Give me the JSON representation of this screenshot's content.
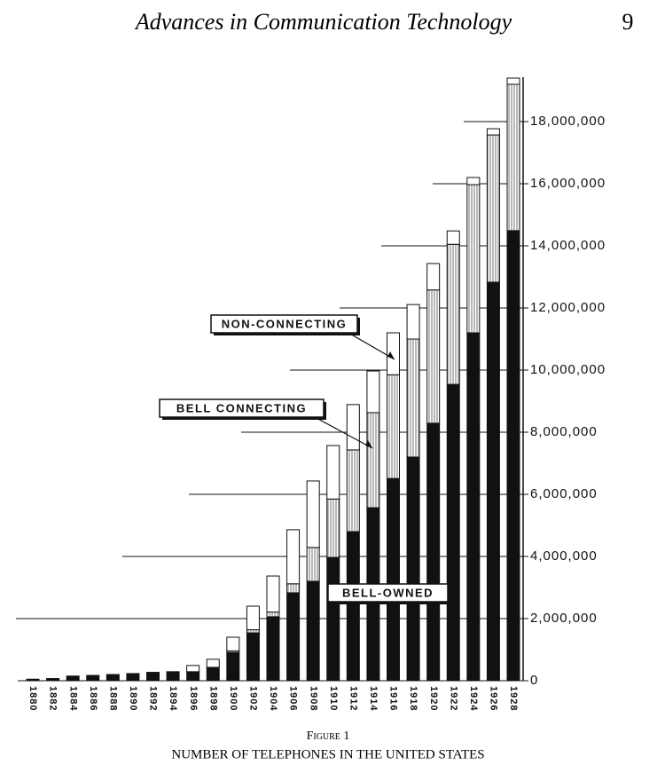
{
  "header": {
    "title": "Advances in Communication Technology",
    "page_number": "9"
  },
  "chart_data": {
    "type": "stacked-bar",
    "figure_label": "Figure 1",
    "title": "NUMBER OF TELEPHONES IN THE UNITED STATES",
    "categories": [
      "1880",
      "1882",
      "1884",
      "1886",
      "1888",
      "1890",
      "1892",
      "1894",
      "1896",
      "1898",
      "1900",
      "1902",
      "1904",
      "1906",
      "1908",
      "1910",
      "1912",
      "1914",
      "1916",
      "1918",
      "1920",
      "1922",
      "1924",
      "1926",
      "1928"
    ],
    "series": [
      {
        "name": "BELL-OWNED",
        "color": "#111111",
        "values": [
          50000,
          70000,
          150000,
          170000,
          200000,
          230000,
          270000,
          290000,
          290000,
          430000,
          910000,
          1540000,
          2060000,
          2830000,
          3200000,
          3970000,
          4800000,
          5570000,
          6510000,
          7200000,
          8290000,
          9540000,
          11200000,
          12830000,
          14490000
        ]
      },
      {
        "name": "BELL CONNECTING",
        "color": "#8a8a8a",
        "values": [
          0,
          0,
          0,
          0,
          0,
          0,
          0,
          0,
          0,
          0,
          50000,
          100000,
          150000,
          290000,
          1090000,
          1880000,
          2630000,
          3060000,
          3340000,
          3800000,
          4290000,
          4510000,
          4770000,
          4740000,
          4710000
        ]
      },
      {
        "name": "NON-CONNECTING",
        "color": "#ffffff",
        "values": [
          0,
          0,
          0,
          0,
          0,
          0,
          0,
          0,
          200000,
          260000,
          440000,
          760000,
          1160000,
          1740000,
          2140000,
          1720000,
          1460000,
          1340000,
          1350000,
          1110000,
          850000,
          430000,
          230000,
          200000,
          200000
        ]
      }
    ],
    "ylim": [
      0,
      20000000
    ],
    "yticks": [
      0,
      {
        "value": 2000000,
        "label": "2,000,000"
      },
      {
        "value": 4000000,
        "label": "4,000,000"
      },
      {
        "value": 6000000,
        "label": "6,000,000"
      },
      {
        "value": 8000000,
        "label": "8,000,000"
      },
      {
        "value": 10000000,
        "label": "10,000,000"
      },
      {
        "value": 12000000,
        "label": "12,000,000"
      },
      {
        "value": 14000000,
        "label": "14,000,000"
      },
      {
        "value": 16000000,
        "label": "16,000,000"
      },
      {
        "value": 18000000,
        "label": "18,000,000"
      }
    ]
  }
}
